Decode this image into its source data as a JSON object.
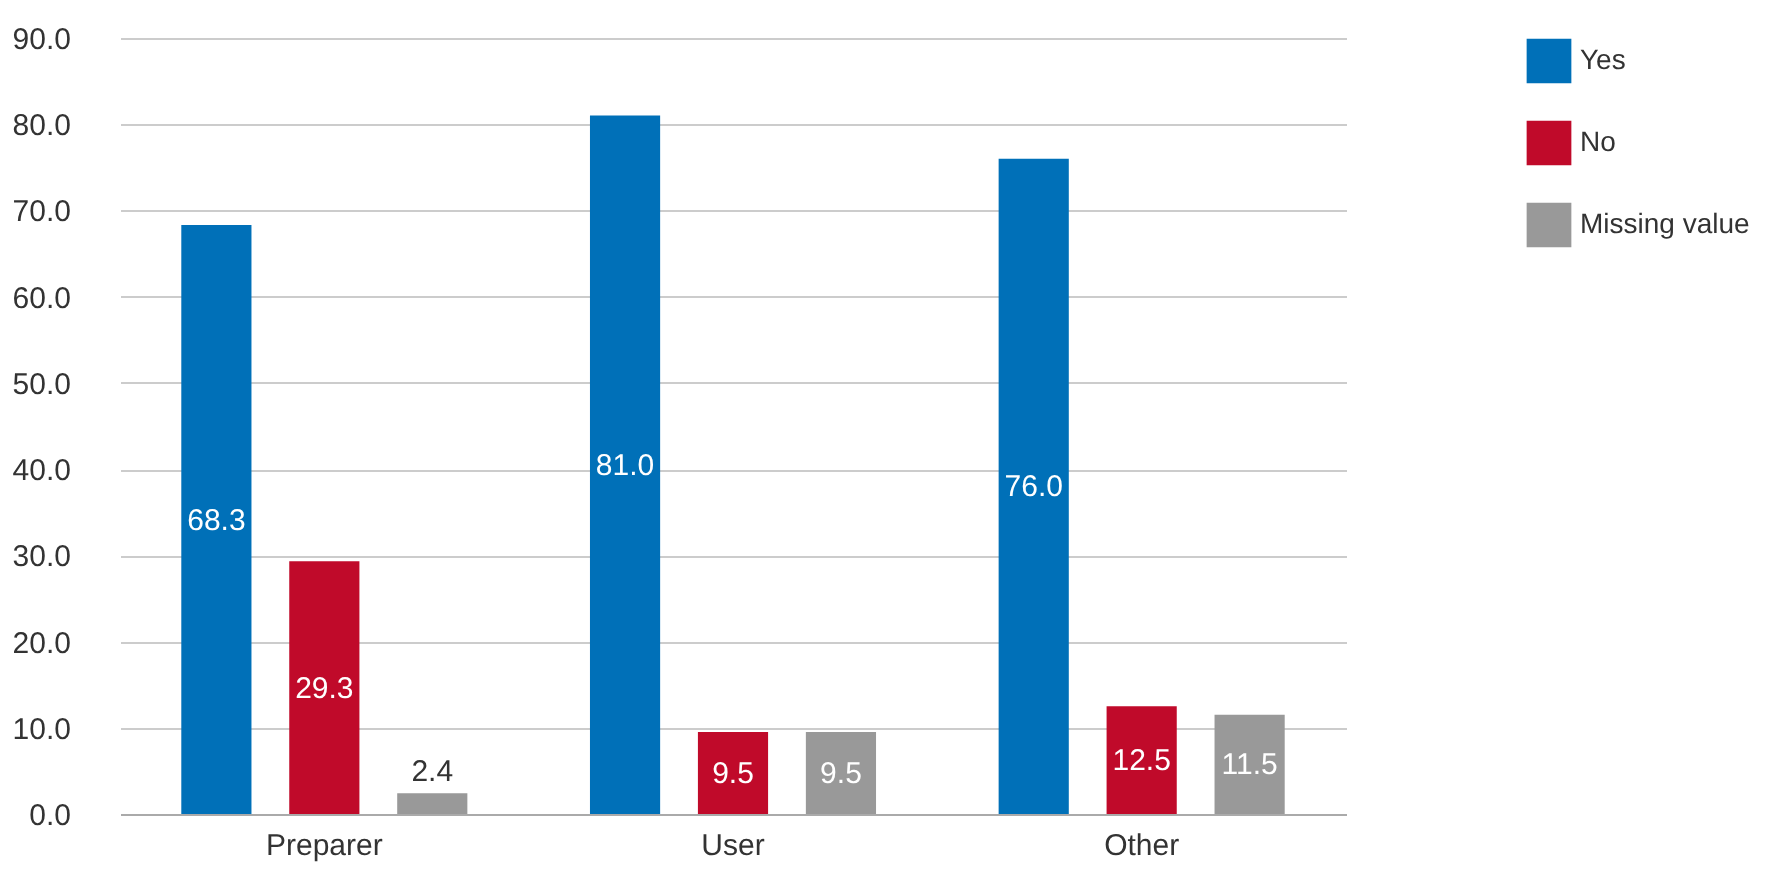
{
  "chart_data": {
    "type": "bar",
    "categories": [
      "Preparer",
      "User",
      "Other"
    ],
    "series": [
      {
        "name": "Yes",
        "color": "#0070b8",
        "values": [
          68.3,
          81.0,
          76.0
        ],
        "value_labels": [
          "68.3",
          "81.0",
          "76.0"
        ]
      },
      {
        "name": "No",
        "color": "#c00a2a",
        "values": [
          29.3,
          9.5,
          12.5
        ],
        "value_labels": [
          "29.3",
          "9.5",
          "12.5"
        ]
      },
      {
        "name": "Missing value",
        "color": "#999999",
        "values": [
          2.4,
          9.5,
          11.5
        ],
        "value_labels": [
          "2.4",
          "9.5",
          "11.5"
        ]
      }
    ],
    "ylim": [
      0,
      90
    ],
    "yticks": [
      {
        "value": 0,
        "label": "0.0"
      },
      {
        "value": 10,
        "label": "10.0"
      },
      {
        "value": 20,
        "label": "20.0"
      },
      {
        "value": 30,
        "label": "30.0"
      },
      {
        "value": 40,
        "label": "40.0"
      },
      {
        "value": 50,
        "label": "50.0"
      },
      {
        "value": 60,
        "label": "60.0"
      },
      {
        "value": 70,
        "label": "70.0"
      },
      {
        "value": 80,
        "label": "80.0"
      },
      {
        "value": 90,
        "label": "90.0"
      }
    ],
    "grid": "y",
    "legend": "right"
  }
}
